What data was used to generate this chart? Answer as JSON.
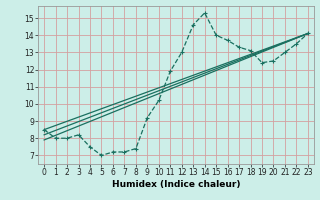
{
  "xlabel": "Humidex (Indice chaleur)",
  "bg_color": "#cceee8",
  "grid_color": "#d4a0a0",
  "line_color": "#1a7060",
  "xlim": [
    -0.5,
    23.5
  ],
  "ylim": [
    6.5,
    15.7
  ],
  "xticks": [
    0,
    1,
    2,
    3,
    4,
    5,
    6,
    7,
    8,
    9,
    10,
    11,
    12,
    13,
    14,
    15,
    16,
    17,
    18,
    19,
    20,
    21,
    22,
    23
  ],
  "yticks": [
    7,
    8,
    9,
    10,
    11,
    12,
    13,
    14,
    15
  ],
  "curve1_x": [
    0,
    1,
    2,
    3,
    4,
    5,
    6,
    7,
    8,
    9,
    10,
    11,
    12,
    13,
    14,
    15,
    16,
    17,
    18,
    19,
    20,
    21,
    22,
    23
  ],
  "curve1_y": [
    8.5,
    8.0,
    8.0,
    8.2,
    7.5,
    7.0,
    7.2,
    7.2,
    7.4,
    9.2,
    10.2,
    11.9,
    13.0,
    14.6,
    15.3,
    14.0,
    13.7,
    13.3,
    13.1,
    12.4,
    12.5,
    13.0,
    13.5,
    14.1
  ],
  "line2_x": [
    0,
    23
  ],
  "line2_y": [
    8.5,
    14.1
  ],
  "line3_x": [
    0,
    23
  ],
  "line3_y": [
    8.2,
    14.1
  ],
  "line4_x": [
    0,
    23
  ],
  "line4_y": [
    7.9,
    14.1
  ],
  "linewidth": 0.9,
  "markersize": 3.5
}
